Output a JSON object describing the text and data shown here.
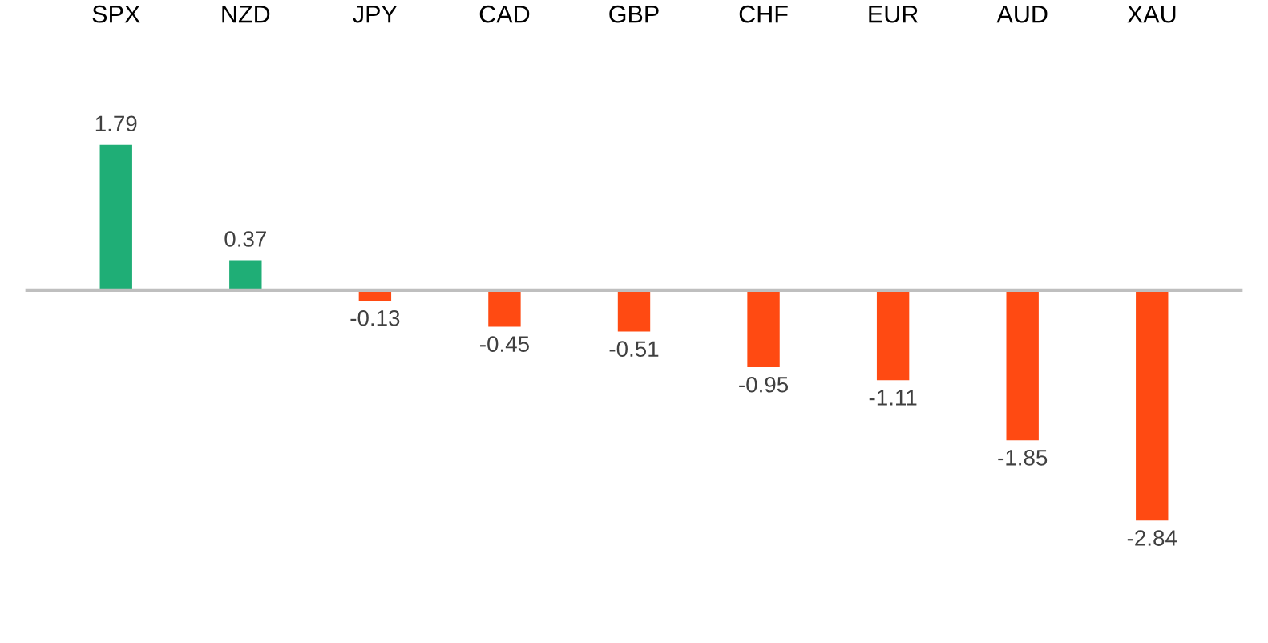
{
  "chart_data": {
    "type": "bar",
    "categories": [
      "SPX",
      "NZD",
      "JPY",
      "CAD",
      "GBP",
      "CHF",
      "EUR",
      "AUD",
      "XAU"
    ],
    "values": [
      1.79,
      0.37,
      -0.13,
      -0.45,
      -0.51,
      -0.95,
      -1.11,
      -1.85,
      -2.84
    ],
    "colors": [
      "#1fae76",
      "#1fae76",
      "#ff4a12",
      "#ff4a12",
      "#ff4a12",
      "#ff4a12",
      "#ff4a12",
      "#ff4a12",
      "#ff4a12"
    ],
    "data_labels": true,
    "grid": false,
    "legend": false
  }
}
